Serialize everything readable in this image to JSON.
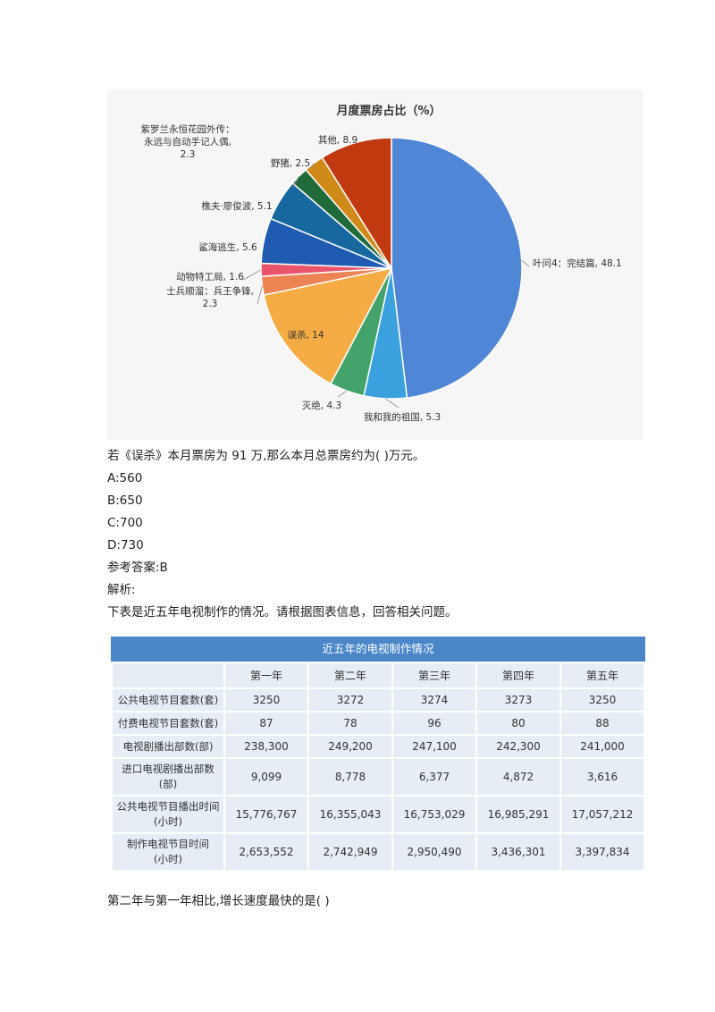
{
  "chart_data": {
    "type": "pie",
    "title": "月度票房占比（%）",
    "slices": [
      {
        "name": "叶问4：完结篇",
        "value": 48.1,
        "color": "#4f86d6",
        "label_lines": [
          "叶问4：完结篇, 48.1"
        ]
      },
      {
        "name": "我和我的祖国",
        "value": 5.3,
        "color": "#3aa0de",
        "label_lines": [
          "我和我的祖国, 5.3"
        ]
      },
      {
        "name": "灭绝",
        "value": 4.3,
        "color": "#43a36a",
        "label_lines": [
          "灭绝, 4.3"
        ]
      },
      {
        "name": "误杀",
        "value": 14,
        "color": "#f5ac44",
        "label_lines": [
          "误杀, 14"
        ]
      },
      {
        "name": "士兵顺溜：兵王争锋",
        "value": 2.3,
        "color": "#ec8454",
        "label_lines": [
          "士兵顺溜：兵王争锋,",
          "2.3"
        ]
      },
      {
        "name": "动物特工局",
        "value": 1.6,
        "color": "#e9546a",
        "label_lines": [
          "动物特工局, 1.6"
        ]
      },
      {
        "name": "鲨海逃生",
        "value": 5.6,
        "color": "#1f5bb1",
        "label_lines": [
          "鲨海逃生, 5.6"
        ]
      },
      {
        "name": "樵夫·廖俊波",
        "value": 5.1,
        "color": "#16689e",
        "label_lines": [
          "樵夫·廖俊波, 5.1"
        ]
      },
      {
        "name": "紫罗兰永恒花园外传：永远与自动手记人偶",
        "value": 2.3,
        "color": "#216b3a",
        "label_lines": [
          "紫罗兰永恒花园外传：",
          "永远与自动手记人偶,",
          "2.3"
        ]
      },
      {
        "name": "野猪",
        "value": 2.5,
        "color": "#cf8a1a",
        "label_lines": [
          "野猪, 2.5"
        ]
      },
      {
        "name": "其他",
        "value": 8.9,
        "color": "#c0390f",
        "label_lines": [
          "其他, 8.9"
        ]
      }
    ]
  },
  "question1": {
    "text": "若《误杀》本月票房为 91 万,那么本月总票房约为(   )万元。",
    "options": [
      "A:560",
      "B:650",
      "C:700",
      "D:730"
    ],
    "answer": "参考答案:B",
    "analysis": "解析:"
  },
  "intro2": "下表是近五年电视制作的情况。请根据图表信息，回答相关问题。",
  "table": {
    "title": "近五年的电视制作情况",
    "headers": [
      "",
      "第一年",
      "第二年",
      "第三年",
      "第四年",
      "第五年"
    ],
    "rows": [
      {
        "label": [
          "公共电视节目套数(套)"
        ],
        "values": [
          "3250",
          "3272",
          "3274",
          "3273",
          "3250"
        ]
      },
      {
        "label": [
          "付费电视节目套数(套)"
        ],
        "values": [
          "87",
          "78",
          "96",
          "80",
          "88"
        ]
      },
      {
        "label": [
          "电视剧播出部数(部)"
        ],
        "values": [
          "238,300",
          "249,200",
          "247,100",
          "242,300",
          "241,000"
        ]
      },
      {
        "label": [
          "进口电视剧播出部数",
          "(部)"
        ],
        "values": [
          "9,099",
          "8,778",
          "6,377",
          "4,872",
          "3,616"
        ]
      },
      {
        "label": [
          "公共电视节目播出时间",
          "(小时)"
        ],
        "values": [
          "15,776,767",
          "16,355,043",
          "16,753,029",
          "16,985,291",
          "17,057,212"
        ]
      },
      {
        "label": [
          "制作电视节目时间",
          "(小时)"
        ],
        "values": [
          "2,653,552",
          "2,742,949",
          "2,950,490",
          "3,436,301",
          "3,397,834"
        ]
      }
    ]
  },
  "question2": "第二年与第一年相比,增长速度最快的是(   )"
}
